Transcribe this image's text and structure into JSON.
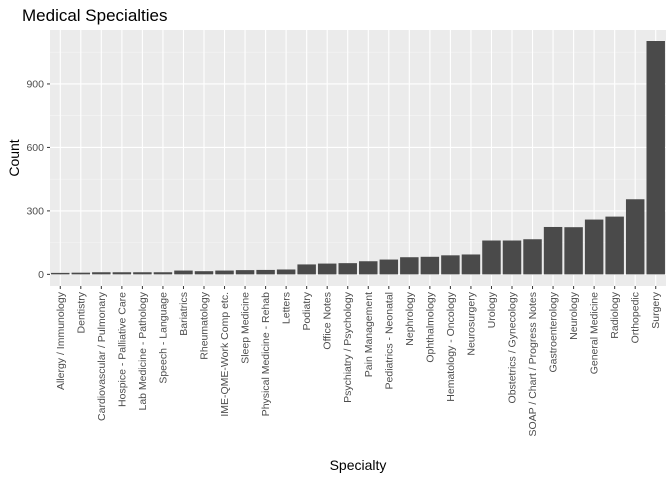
{
  "chart_data": {
    "type": "bar",
    "title": "Medical Specialties",
    "xlabel": "Specialty",
    "ylabel": "Count",
    "ylim": [
      -55,
      1155
    ],
    "yticks": [
      0,
      300,
      600,
      900
    ],
    "grid": true,
    "legend": "none",
    "colors": {
      "bar": "#4a4a4a",
      "panel": "#ebebeb",
      "grid": "#ffffff"
    },
    "categories": [
      "Allergy / Immunology",
      "Dentistry",
      "Cardiovascular / Pulmonary",
      "Hospice - Palliative Care",
      "Lab Medicine - Pathology",
      "Speech - Language",
      "Bariatrics",
      "Rheumatology",
      "IME-QME-Work Comp etc.",
      "Sleep Medicine",
      "Physical Medicine - Rehab",
      "Letters",
      "Podiatry",
      "Office Notes",
      "Psychiatry / Psychology",
      "Pain Management",
      "Pediatrics - Neonatal",
      "Nephrology",
      "Ophthalmology",
      "Hematology - Oncology",
      "Neurosurgery",
      "Urology",
      "Obstetrics / Gynecology",
      "SOAP / Chart / Progress Notes",
      "Gastroenterology",
      "Neurology",
      "General Medicine",
      "Radiology",
      "Orthopedic",
      "Surgery"
    ],
    "values": [
      7,
      8,
      10,
      10,
      10,
      10,
      18,
      15,
      18,
      20,
      21,
      23,
      47,
      51,
      53,
      62,
      70,
      81,
      83,
      90,
      94,
      160,
      160,
      166,
      224,
      223,
      259,
      273,
      355,
      1103
    ]
  }
}
